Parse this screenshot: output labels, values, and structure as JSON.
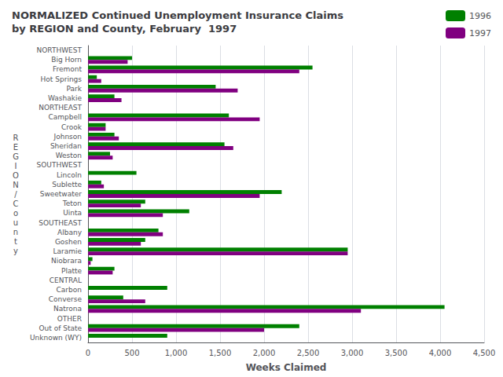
{
  "chart_data": {
    "type": "bar",
    "orientation": "horizontal",
    "title": "NORMALIZED Continued Unemployment Insurance Claims\nby REGION and County, February  1997",
    "xlabel": "Weeks Claimed",
    "ylabel": "R\nE\nG\nI\nO\nN\n/\nC\no\nu\nn\nt\ny",
    "categories": [
      "NORTHWEST",
      "Big Horn",
      "Fremont",
      "Hot Springs",
      "Park",
      "Washakie",
      "NORTHEAST",
      "Campbell",
      "Crook",
      "Johnson",
      "Sheridan",
      "Weston",
      "SOUTHWEST",
      "Lincoln",
      "Sublette",
      "Sweetwater",
      "Teton",
      "Uinta",
      "SOUTHEAST",
      "Albany",
      "Goshen",
      "Laramie",
      "Niobrara",
      "Platte",
      "CENTRAL",
      "Carbon",
      "Converse",
      "Natrona",
      "OTHER",
      "Out of State",
      "Unknown (WY)"
    ],
    "series": [
      {
        "name": "1996",
        "color": "#008000",
        "values": [
          null,
          500,
          2550,
          100,
          1450,
          300,
          null,
          1600,
          200,
          300,
          1550,
          250,
          null,
          550,
          150,
          2200,
          650,
          1150,
          null,
          800,
          650,
          2950,
          50,
          300,
          null,
          900,
          400,
          4050,
          null,
          2400,
          900
        ]
      },
      {
        "name": "1997",
        "color": "#800080",
        "values": [
          null,
          450,
          2400,
          150,
          1700,
          380,
          null,
          1950,
          200,
          350,
          1650,
          280,
          null,
          0,
          180,
          1950,
          600,
          850,
          null,
          850,
          600,
          2950,
          30,
          280,
          null,
          0,
          650,
          3100,
          null,
          2000,
          0
        ]
      }
    ],
    "xlim": [
      0,
      4500
    ],
    "xticks": [
      0,
      500,
      1000,
      1500,
      2000,
      2500,
      3000,
      3500,
      4000,
      4500
    ],
    "grid": true,
    "legend": "upper right"
  }
}
